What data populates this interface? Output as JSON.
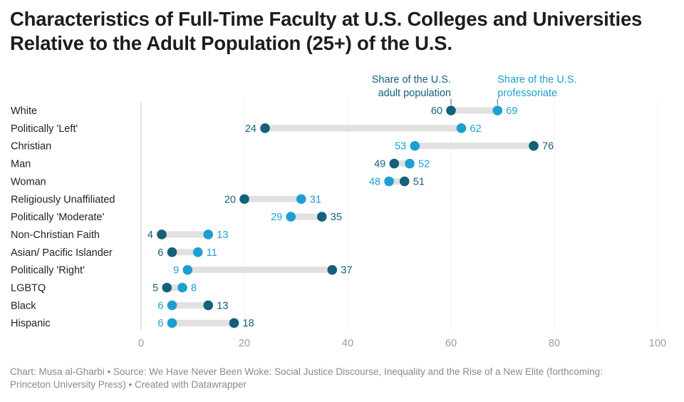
{
  "chart_data": {
    "type": "dot-range",
    "title": "Characteristics of Full-Time Faculty at U.S. Colleges and Universities Relative to the Adult Population (25+) of the U.S.",
    "legend": {
      "population": "Share of the U.S. adult population",
      "professoriate": "Share of the U.S. professoriate"
    },
    "colors": {
      "population": "#15607a",
      "professoriate": "#1d9fd1",
      "bar": "#e1e1e1",
      "grid": "#dcdcdc"
    },
    "xlim": [
      0,
      100
    ],
    "xticks": [
      0,
      20,
      40,
      60,
      80,
      100
    ],
    "categories": [
      "White",
      "Politically 'Left'",
      "Christian",
      "Man",
      "Woman",
      "Religiously Unaffiliated",
      "Politically 'Moderate'",
      "Non-Christian Faith",
      "Asian/ Pacific Islander",
      "Politically 'Right'",
      "LGBTQ",
      "Black",
      "Hispanic"
    ],
    "series": [
      {
        "name": "Share of the U.S. adult population",
        "key": "population",
        "values": [
          60,
          24,
          76,
          49,
          51,
          20,
          35,
          4,
          6,
          37,
          5,
          13,
          18
        ]
      },
      {
        "name": "Share of the U.S. professoriate",
        "key": "professoriate",
        "values": [
          69,
          62,
          53,
          52,
          48,
          31,
          29,
          13,
          11,
          9,
          8,
          6,
          6
        ]
      }
    ]
  },
  "footer": {
    "line1": "Chart: Musa al-Gharbi • Source: We Have Never Been Woke: Social Justice Discourse, Inequality and the Rise of a New Elite (forthcoming:",
    "line2": "Princeton University Press) • Created with Datawrapper"
  }
}
